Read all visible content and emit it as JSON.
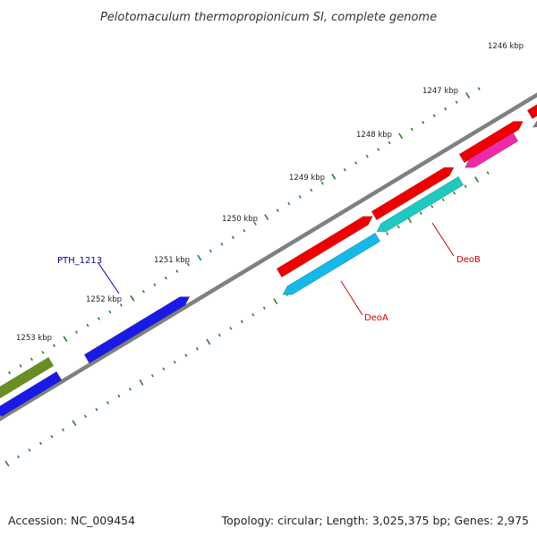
{
  "title": "Pelotomaculum thermopropionicum SI, complete genome",
  "footer": {
    "accession": "Accession: NC_009454",
    "summary": "Topology: circular; Length: 3,025,375 bp; Genes: 2,975"
  },
  "ticks": [
    "1246 kbp",
    "1247 kbp",
    "1248 kbp",
    "1249 kbp",
    "1250 kbp",
    "1251 kbp",
    "1252 kbp",
    "1253 kbp"
  ],
  "gene_labels": {
    "pth1213": "PTH_1213",
    "deob": "DeoB",
    "deoa": "DeoA"
  },
  "colors": {
    "backbone": "#808080",
    "tick": "#2e7d2e",
    "red": "#ee0000",
    "blue": "#1a1ae6",
    "cyan": "#15b8e6",
    "teal": "#1fc8c0",
    "magenta": "#ee2aa8",
    "olive": "#6b8e23",
    "label_blue": "#000099",
    "label_red": "#cc0000"
  }
}
